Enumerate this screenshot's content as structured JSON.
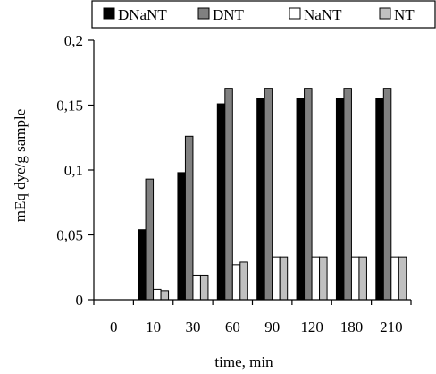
{
  "chart_data": {
    "type": "bar",
    "title": "",
    "xlabel": "time, min",
    "ylabel": "mEq dye/g sample",
    "categories": [
      "0",
      "10",
      "30",
      "60",
      "90",
      "120",
      "180",
      "210"
    ],
    "ylim": [
      0,
      0.2
    ],
    "yticks": [
      {
        "value": 0,
        "label": "0"
      },
      {
        "value": 0.05,
        "label": "0,05"
      },
      {
        "value": 0.1,
        "label": "0,1"
      },
      {
        "value": 0.15,
        "label": "0,15"
      },
      {
        "value": 0.2,
        "label": "0,2"
      }
    ],
    "grid": false,
    "legend_position": "top",
    "series": [
      {
        "name": "DNaNT",
        "color": "#000000",
        "values": [
          0,
          0.054,
          0.098,
          0.151,
          0.155,
          0.155,
          0.155,
          0.155
        ]
      },
      {
        "name": "DNT",
        "color": "#808080",
        "values": [
          0,
          0.093,
          0.126,
          0.163,
          0.163,
          0.163,
          0.163,
          0.163
        ]
      },
      {
        "name": "NaNT",
        "color": "#ffffff",
        "values": [
          0,
          0.008,
          0.019,
          0.027,
          0.033,
          0.033,
          0.033,
          0.033
        ]
      },
      {
        "name": "NT",
        "color": "#c0c0c0",
        "values": [
          0,
          0.007,
          0.019,
          0.029,
          0.033,
          0.033,
          0.033,
          0.033
        ]
      }
    ]
  }
}
